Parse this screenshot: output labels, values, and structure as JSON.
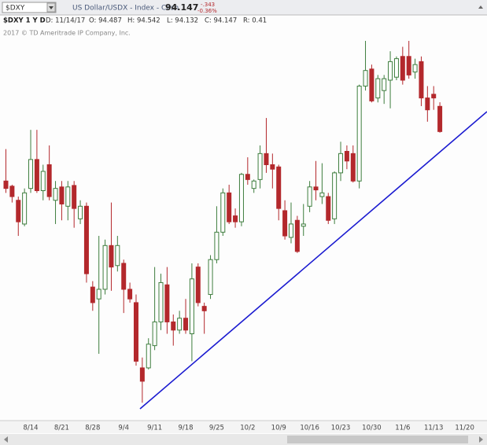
{
  "header": {
    "symbol": "$DXY",
    "description": "US Dollar/USDX - Index - Cash",
    "last": "94.147",
    "change": "-.343",
    "change_pct": "-0.36%",
    "study": "$DXY 1 Y D",
    "date": "D: 11/14/17",
    "open": "O: 94.487",
    "high": "H: 94.542",
    "low": "L: 94.132",
    "close": "C: 94.147",
    "range": "R: 0.41",
    "copyright": "2017 © TD Ameritrade IP Company, Inc."
  },
  "chart_data": {
    "type": "candlestick",
    "categories": [
      null,
      null,
      null,
      null,
      "8/14",
      null,
      null,
      null,
      null,
      "8/21",
      null,
      null,
      null,
      null,
      "8/28",
      null,
      null,
      null,
      null,
      "9/4",
      null,
      null,
      null,
      null,
      "9/11",
      null,
      null,
      null,
      null,
      "9/18",
      null,
      null,
      null,
      null,
      "9/25",
      null,
      null,
      null,
      null,
      "10/2",
      null,
      null,
      null,
      null,
      "10/9",
      null,
      null,
      null,
      null,
      "10/16",
      null,
      null,
      null,
      null,
      "10/23",
      null,
      null,
      null,
      null,
      "10/30",
      null,
      null,
      null,
      null,
      "11/6",
      null,
      null,
      null,
      null,
      "11/13",
      null,
      null,
      null,
      null,
      "11/20"
    ],
    "open": [
      93.48,
      93.41,
      93.22,
      92.9,
      93.38,
      93.77,
      93.35,
      93.7,
      93.22,
      93.4,
      93.14,
      93.42,
      92.97,
      93.14,
      92.05,
      91.89,
      92.02,
      92.61,
      92.34,
      92.37,
      92.02,
      91.84,
      90.96,
      90.96,
      91.26,
      91.58,
      92.08,
      91.58,
      91.47,
      91.63,
      91.42,
      92.32,
      91.79,
      91.95,
      92.42,
      92.79,
      93.32,
      93.01,
      92.93,
      93.57,
      93.38,
      93.5,
      93.85,
      93.7,
      93.67,
      93.08,
      92.72,
      92.95,
      92.87,
      93.14,
      93.4,
      93.27,
      93.27,
      92.97,
      93.59,
      93.88,
      93.85,
      93.48,
      94.76,
      94.99,
      94.6,
      94.7,
      94.84,
      94.88,
      95.16,
      95.16,
      94.95,
      95.09,
      94.6,
      94.65,
      94.487,
      null,
      null,
      null,
      null
    ],
    "high": [
      93.91,
      93.43,
      93.27,
      93.38,
      94.17,
      94.17,
      93.7,
      93.96,
      93.48,
      93.48,
      93.48,
      93.48,
      93.22,
      93.19,
      92.13,
      92.74,
      92.69,
      93.19,
      92.74,
      92.42,
      92.11,
      91.95,
      91.1,
      91.36,
      92.32,
      92.23,
      92.32,
      91.68,
      91.73,
      91.89,
      92.37,
      92.37,
      91.84,
      92.48,
      93.14,
      93.38,
      93.43,
      93.11,
      93.59,
      93.8,
      93.5,
      93.96,
      94.33,
      93.85,
      93.7,
      93.22,
      93.19,
      93.01,
      93.17,
      93.48,
      93.75,
      93.72,
      93.32,
      93.61,
      94.01,
      93.96,
      93.96,
      94.78,
      95.37,
      95.05,
      94.91,
      94.91,
      95.23,
      95.16,
      95.29,
      95.37,
      95.13,
      95.16,
      94.76,
      94.76,
      94.542,
      null,
      null,
      null,
      null
    ],
    "low": [
      93.32,
      93.19,
      92.74,
      92.87,
      93.32,
      93.32,
      93.22,
      93.22,
      92.9,
      92.95,
      92.95,
      92.85,
      92.9,
      92.11,
      91.73,
      91.15,
      91.95,
      92.0,
      92.26,
      91.7,
      91.84,
      90.99,
      90.49,
      90.94,
      91.2,
      91.47,
      91.42,
      91.26,
      91.42,
      91.42,
      91.05,
      91.79,
      91.42,
      91.89,
      92.37,
      92.74,
      92.9,
      92.85,
      92.87,
      93.43,
      93.32,
      93.38,
      93.59,
      93.38,
      92.95,
      92.69,
      92.64,
      92.51,
      92.74,
      93.06,
      93.22,
      93.17,
      92.9,
      92.9,
      93.48,
      93.64,
      93.46,
      93.38,
      94.7,
      94.54,
      94.54,
      94.52,
      94.46,
      94.84,
      94.78,
      94.86,
      94.86,
      94.49,
      94.28,
      94.44,
      94.132,
      null,
      null,
      null,
      null
    ],
    "close": [
      93.38,
      93.27,
      92.93,
      93.32,
      93.77,
      93.35,
      93.61,
      93.27,
      93.38,
      93.17,
      93.4,
      93.11,
      93.14,
      92.23,
      91.84,
      92.02,
      92.61,
      92.32,
      92.61,
      92.02,
      91.89,
      91.05,
      90.78,
      91.28,
      91.58,
      92.11,
      91.58,
      91.47,
      91.63,
      91.47,
      92.16,
      91.84,
      91.73,
      92.42,
      92.79,
      93.32,
      92.93,
      92.93,
      93.57,
      93.5,
      93.48,
      93.85,
      93.7,
      93.64,
      93.11,
      92.74,
      92.9,
      92.53,
      92.9,
      93.4,
      93.36,
      93.32,
      92.95,
      93.59,
      93.85,
      93.75,
      93.48,
      94.76,
      94.97,
      94.56,
      94.86,
      94.86,
      95.09,
      95.13,
      94.84,
      94.91,
      95.05,
      94.6,
      94.44,
      94.6,
      94.147,
      null,
      null,
      null,
      null
    ],
    "up_color": "#3d7d3d",
    "down_color": "#b3282c",
    "ylim": [
      90.27,
      95.55
    ]
  }
}
